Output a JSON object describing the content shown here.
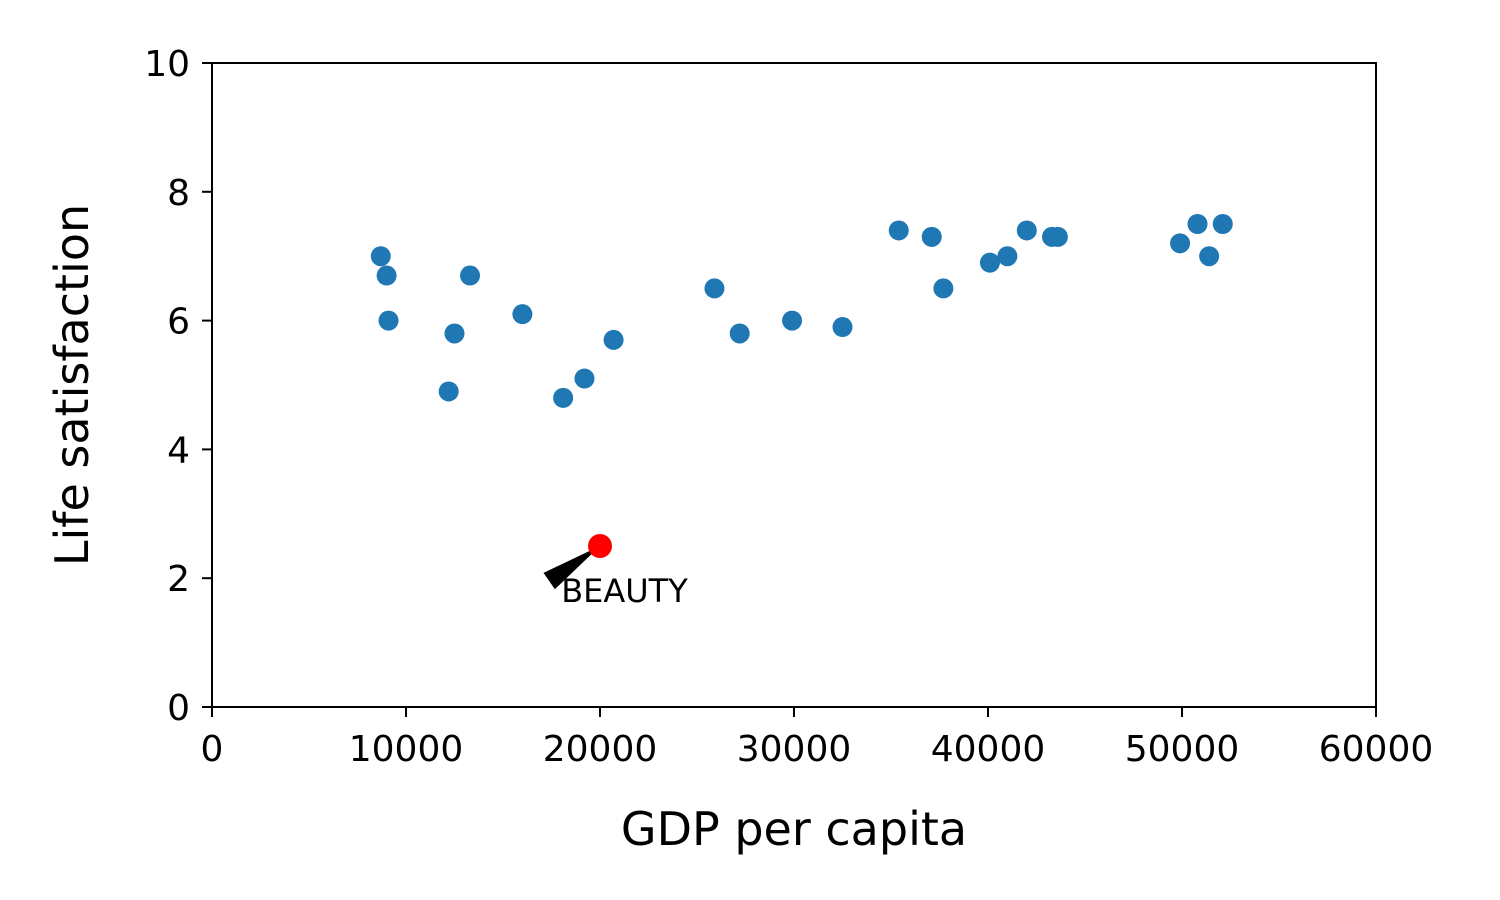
{
  "chart_data": {
    "type": "scatter",
    "title": "",
    "xlabel": "GDP per capita",
    "ylabel": "Life satisfaction",
    "xlim": [
      0,
      60000
    ],
    "ylim": [
      0,
      10
    ],
    "xticks": [
      "0",
      "10000",
      "20000",
      "30000",
      "40000",
      "50000",
      "60000"
    ],
    "yticks": [
      "0",
      "2",
      "4",
      "6",
      "8",
      "10"
    ],
    "grid": false,
    "legend": "none",
    "point_color": "#1f77b4",
    "points": [
      {
        "x": 8700,
        "y": 7.0
      },
      {
        "x": 9000,
        "y": 6.7
      },
      {
        "x": 9100,
        "y": 6.0
      },
      {
        "x": 12200,
        "y": 4.9
      },
      {
        "x": 12500,
        "y": 5.8
      },
      {
        "x": 13300,
        "y": 6.7
      },
      {
        "x": 16000,
        "y": 6.1
      },
      {
        "x": 18100,
        "y": 4.8
      },
      {
        "x": 19200,
        "y": 5.1
      },
      {
        "x": 20700,
        "y": 5.7
      },
      {
        "x": 25900,
        "y": 6.5
      },
      {
        "x": 27200,
        "y": 5.8
      },
      {
        "x": 29900,
        "y": 6.0
      },
      {
        "x": 32500,
        "y": 5.9
      },
      {
        "x": 35400,
        "y": 7.4
      },
      {
        "x": 37100,
        "y": 7.3
      },
      {
        "x": 37700,
        "y": 6.5
      },
      {
        "x": 40100,
        "y": 6.9
      },
      {
        "x": 41000,
        "y": 7.0
      },
      {
        "x": 42000,
        "y": 7.4
      },
      {
        "x": 43300,
        "y": 7.3
      },
      {
        "x": 43600,
        "y": 7.3
      },
      {
        "x": 49900,
        "y": 7.2
      },
      {
        "x": 50800,
        "y": 7.5
      },
      {
        "x": 51400,
        "y": 7.0
      },
      {
        "x": 52100,
        "y": 7.5
      }
    ],
    "highlight": {
      "x": 20000,
      "y": 2.5,
      "color": "#ff0000"
    },
    "annotations": [
      {
        "text": "BEAUTY",
        "x": 18000,
        "y": 1.8,
        "arrow_to": {
          "x": 20000,
          "y": 2.5
        }
      }
    ]
  }
}
